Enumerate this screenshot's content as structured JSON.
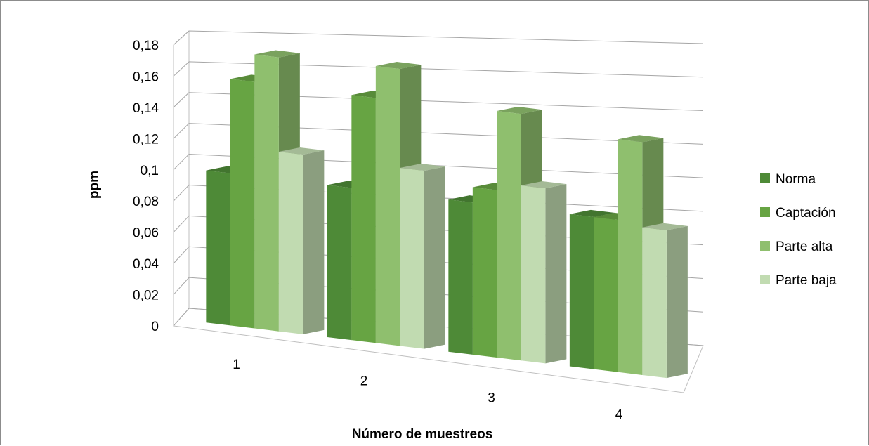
{
  "chart_data": {
    "type": "bar",
    "style": "3d-clustered-column",
    "categories": [
      "1",
      "2",
      "3",
      "4"
    ],
    "series": [
      {
        "name": "Norma",
        "values": [
          0.1,
          0.1,
          0.1,
          0.1
        ],
        "color": "#4e8a37"
      },
      {
        "name": "Captación",
        "values": [
          0.162,
          0.161,
          0.11,
          0.1
        ],
        "color": "#67a443"
      },
      {
        "name": "Parte alta",
        "values": [
          0.18,
          0.182,
          0.162,
          0.153
        ],
        "color": "#8fbf6e"
      },
      {
        "name": "Parte baja",
        "values": [
          0.118,
          0.117,
          0.115,
          0.097
        ],
        "color": "#c1dbb1"
      }
    ],
    "xlabel": "Número de muestreos",
    "ylabel": "ppm",
    "ylim": [
      0,
      0.18
    ],
    "yticks": [
      "0",
      "0,02",
      "0,04",
      "0,06",
      "0,08",
      "0,1",
      "0,12",
      "0,14",
      "0,16",
      "0,18"
    ],
    "grid": true,
    "legend": "right"
  }
}
